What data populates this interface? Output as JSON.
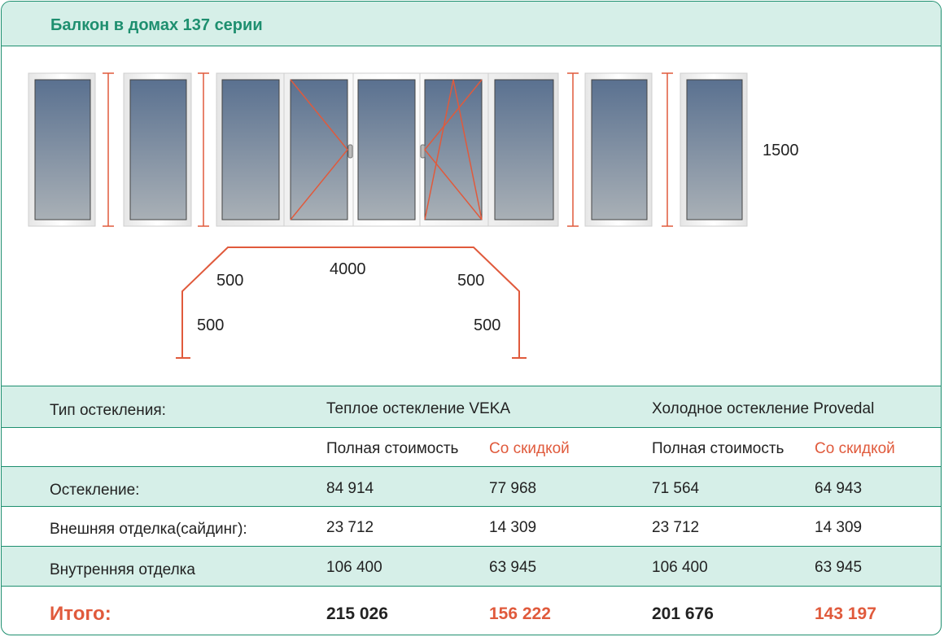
{
  "header": {
    "title": "Балкон в домах 137 серии"
  },
  "diagram": {
    "height_label": "1500",
    "front_label": "4000",
    "diag_left_label": "500",
    "diag_right_label": "500",
    "side_left_label": "500",
    "side_right_label": "500"
  },
  "colors": {
    "accent": "#1e8f6f",
    "band": "#d6efe8",
    "discount": "#e05a3c"
  },
  "table": {
    "type_label": "Тип остекления:",
    "warm_title": "Теплое остекление VEKA",
    "cold_title": "Холодное остекление Provedal",
    "full_price": "Полная стоимость",
    "discount": "Со скидкой",
    "rows": [
      {
        "label": "Остекление:",
        "warm_full": "84 914",
        "warm_disc": "77 968",
        "cold_full": "71 564",
        "cold_disc": "64 943"
      },
      {
        "label": "Внешняя отделка(сайдинг):",
        "warm_full": "23 712",
        "warm_disc": "14 309",
        "cold_full": "23 712",
        "cold_disc": "14 309"
      },
      {
        "label": "Внутренняя отделка",
        "warm_full": "106 400",
        "warm_disc": "63 945",
        "cold_full": "106 400",
        "cold_disc": "63 945"
      }
    ],
    "total": {
      "label": "Итого:",
      "warm_full": "215 026",
      "warm_disc": "156 222",
      "cold_full": "201 676",
      "cold_disc": "143 197"
    }
  }
}
